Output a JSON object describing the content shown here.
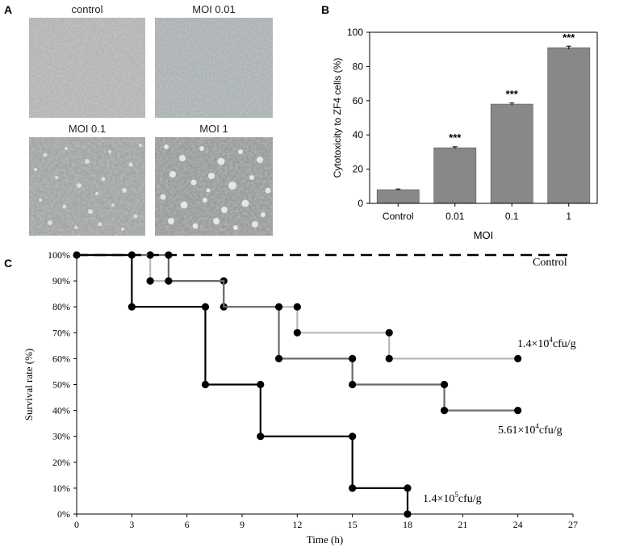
{
  "panels": {
    "a": {
      "letter": "A",
      "images": [
        {
          "label": "control"
        },
        {
          "label": "MOI 0.01"
        },
        {
          "label": "MOI 0.1"
        },
        {
          "label": "MOI 1"
        }
      ]
    },
    "b": {
      "letter": "B"
    },
    "c": {
      "letter": "C"
    }
  },
  "chart_data": [
    {
      "type": "bar",
      "categories": [
        "Control",
        "0.01",
        "0.1",
        "1"
      ],
      "values": [
        8,
        32.5,
        58,
        91
      ],
      "errors": [
        0.4,
        0.6,
        0.7,
        0.9
      ],
      "annotations": [
        "",
        "***",
        "***",
        "***"
      ],
      "xlabel": "MOI",
      "ylabel": "Cytotoxicity to ZF4 cells (%)",
      "ylim": [
        0,
        100
      ],
      "yticks": [
        "0",
        "20",
        "40",
        "60",
        "80",
        "100"
      ],
      "bar_color": "#888888",
      "grid": false
    },
    {
      "type": "line",
      "subtype": "step (Kaplan-Meier survival)",
      "xlabel": "Time (h)",
      "ylabel": "Survival rate (%)",
      "xlim": [
        0,
        27
      ],
      "ylim": [
        0,
        100
      ],
      "xticks": [
        "0",
        "3",
        "6",
        "9",
        "12",
        "15",
        "18",
        "21",
        "24",
        "27"
      ],
      "yticks": [
        "0%",
        "10%",
        "20%",
        "30%",
        "40%",
        "50%",
        "60%",
        "70%",
        "80%",
        "90%",
        "100%"
      ],
      "series": [
        {
          "name": "Control",
          "color": "#000000",
          "dashed": true,
          "points": [
            [
              0,
              100
            ],
            [
              27,
              100
            ]
          ]
        },
        {
          "name": "1.4×10⁴cfu/g",
          "color": "#b8b8b8",
          "points": [
            [
              0,
              100
            ],
            [
              4,
              100
            ],
            [
              4,
              90
            ],
            [
              8,
              90
            ],
            [
              8,
              80
            ],
            [
              12,
              80
            ],
            [
              12,
              70
            ],
            [
              17,
              70
            ],
            [
              17,
              60
            ],
            [
              24,
              60
            ]
          ],
          "markers": [
            [
              4,
              100
            ],
            [
              4,
              90
            ],
            [
              8,
              90
            ],
            [
              8,
              80
            ],
            [
              12,
              80
            ],
            [
              12,
              70
            ],
            [
              17,
              70
            ],
            [
              17,
              60
            ],
            [
              24,
              60
            ]
          ]
        },
        {
          "name": "5.61×10⁴cfu/g",
          "color": "#6a6a6a",
          "points": [
            [
              0,
              100
            ],
            [
              5,
              100
            ],
            [
              5,
              90
            ],
            [
              8,
              90
            ],
            [
              8,
              80
            ],
            [
              11,
              80
            ],
            [
              11,
              60
            ],
            [
              15,
              60
            ],
            [
              15,
              50
            ],
            [
              20,
              50
            ],
            [
              20,
              40
            ],
            [
              24,
              40
            ]
          ],
          "markers": [
            [
              5,
              100
            ],
            [
              5,
              90
            ],
            [
              11,
              80
            ],
            [
              11,
              60
            ],
            [
              15,
              60
            ],
            [
              15,
              50
            ],
            [
              20,
              50
            ],
            [
              20,
              40
            ],
            [
              24,
              40
            ]
          ]
        },
        {
          "name": "1.4×10⁵cfu/g",
          "color": "#000000",
          "points": [
            [
              0,
              100
            ],
            [
              3,
              100
            ],
            [
              3,
              80
            ],
            [
              7,
              80
            ],
            [
              7,
              50
            ],
            [
              10,
              50
            ],
            [
              10,
              30
            ],
            [
              15,
              30
            ],
            [
              15,
              10
            ],
            [
              18,
              10
            ],
            [
              18,
              0
            ]
          ],
          "markers": [
            [
              0,
              100
            ],
            [
              3,
              100
            ],
            [
              3,
              80
            ],
            [
              7,
              80
            ],
            [
              7,
              50
            ],
            [
              10,
              50
            ],
            [
              10,
              30
            ],
            [
              15,
              30
            ],
            [
              15,
              10
            ],
            [
              18,
              10
            ],
            [
              18,
              0
            ]
          ]
        }
      ],
      "series_labels": [
        {
          "series": "Control",
          "text": "Control"
        },
        {
          "series": "1.4×10⁴cfu/g",
          "text_main": "1.4×10",
          "text_sup": "4",
          "text_tail": "cfu/g"
        },
        {
          "series": "5.61×10⁴cfu/g",
          "text_main": "5.61×10",
          "text_sup": "4",
          "text_tail": "cfu/g"
        },
        {
          "series": "1.4×10⁵cfu/g",
          "text_main": "1.4×10",
          "text_sup": "5",
          "text_tail": "cfu/g"
        }
      ]
    }
  ]
}
